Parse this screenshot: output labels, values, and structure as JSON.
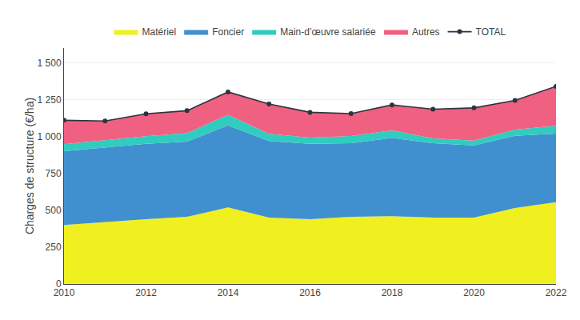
{
  "chart_data": {
    "type": "area",
    "stacked": true,
    "x": [
      2010,
      2011,
      2012,
      2013,
      2014,
      2015,
      2016,
      2017,
      2018,
      2019,
      2020,
      2021,
      2022
    ],
    "series": [
      {
        "name": "Matériel",
        "color": "#f0f020",
        "values": [
          400,
          420,
          440,
          455,
          520,
          450,
          440,
          455,
          460,
          450,
          450,
          515,
          555
        ]
      },
      {
        "name": "Foncier",
        "color": "#4090d0",
        "values": [
          500,
          505,
          510,
          510,
          555,
          520,
          510,
          500,
          530,
          505,
          490,
          490,
          465
        ]
      },
      {
        "name": "Main-d’œuvre salariée",
        "color": "#30ccc0",
        "values": [
          48,
          52,
          52,
          58,
          72,
          48,
          42,
          48,
          52,
          32,
          32,
          42,
          52
        ]
      },
      {
        "name": "Autres",
        "color": "#f06080",
        "values": [
          162,
          128,
          152,
          152,
          155,
          202,
          172,
          152,
          172,
          198,
          222,
          198,
          268
        ]
      },
      {
        "name": "TOTAL",
        "type": "line",
        "marker": "circle",
        "color": "#2a3540",
        "values": [
          1110,
          1105,
          1154,
          1175,
          1302,
          1220,
          1164,
          1155,
          1214,
          1185,
          1194,
          1245,
          1340
        ]
      }
    ],
    "ylabel": "Charges de structure (€/ha)",
    "xlim": [
      2010,
      2022
    ],
    "xticks": [
      2010,
      2012,
      2014,
      2016,
      2018,
      2020,
      2022
    ],
    "ylim": [
      0,
      1600
    ],
    "yticks": [
      0,
      250,
      500,
      750,
      {
        "value": 1000,
        "label": "1 000"
      },
      {
        "value": 1250,
        "label": "1 250"
      },
      {
        "value": 1500,
        "label": "1 500"
      }
    ],
    "grid": true,
    "legend": "top"
  }
}
